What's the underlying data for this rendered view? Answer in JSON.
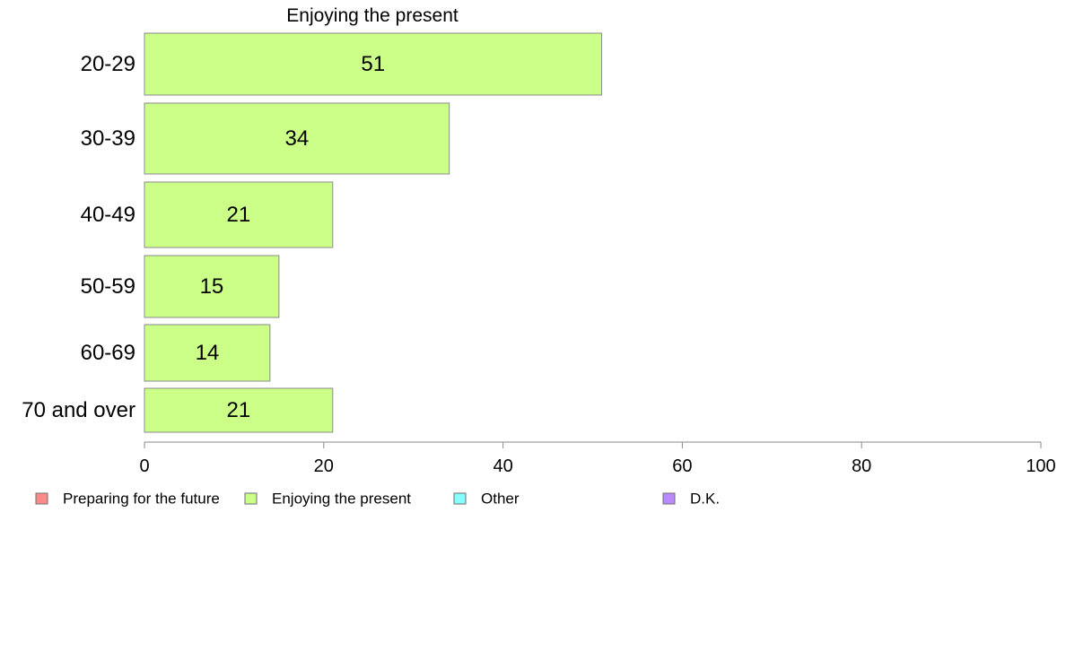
{
  "chart_data": {
    "type": "bar",
    "orientation": "horizontal",
    "title": "Enjoying the present",
    "categories": [
      "20-29",
      "30-39",
      "40-49",
      "50-59",
      "60-69",
      "70 and over"
    ],
    "series": [
      {
        "name": "Enjoying the present",
        "values": [
          51,
          34,
          21,
          15,
          14,
          21
        ],
        "color": "#ccff88"
      }
    ],
    "data_labels": [
      "51",
      "34",
      "21",
      "15",
      "14",
      "21"
    ],
    "xlim": [
      0,
      100
    ],
    "x_ticks": [
      0,
      20,
      40,
      60,
      80,
      100
    ],
    "x_tick_labels": [
      "0",
      "20",
      "40",
      "60",
      "80",
      "100"
    ],
    "grid": false,
    "legend_position": "bottom",
    "legend": [
      {
        "label": "Preparing for the future",
        "color": "#ff8888"
      },
      {
        "label": "Enjoying the present",
        "color": "#ccff88"
      },
      {
        "label": "Other",
        "color": "#88ffff"
      },
      {
        "label": "D.K.",
        "color": "#bb88ff"
      }
    ]
  }
}
